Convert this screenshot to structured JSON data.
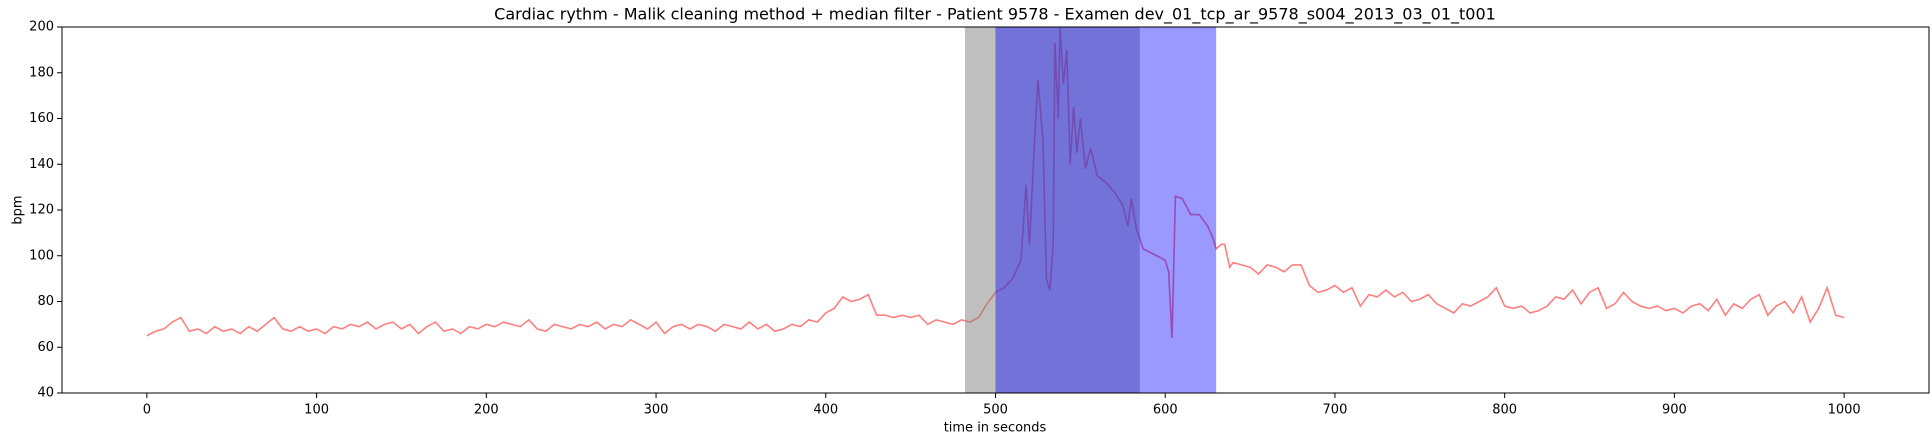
{
  "chart_data": {
    "type": "line",
    "title": "Cardiac rythm - Malik cleaning method + median filter - Patient 9578 - Examen dev_01_tcp_ar_9578_s004_2013_03_01_t001",
    "xlabel": "time in seconds",
    "ylabel": "bpm",
    "xlim": [
      -50,
      1050
    ],
    "ylim": [
      40,
      200
    ],
    "xticks": [
      0,
      100,
      200,
      300,
      400,
      500,
      600,
      700,
      800,
      900,
      1000
    ],
    "yticks": [
      40,
      60,
      80,
      100,
      120,
      140,
      160,
      180,
      200
    ],
    "spans": [
      {
        "start": 482,
        "end": 585,
        "color": "#808080",
        "alpha": 0.5
      },
      {
        "start": 500,
        "end": 630,
        "color": "#0000ff",
        "alpha": 0.4
      }
    ],
    "series": [
      {
        "color": "#ff0000",
        "alpha": 0.5,
        "x": [
          0,
          5,
          10,
          15,
          20,
          25,
          30,
          35,
          40,
          45,
          50,
          55,
          60,
          65,
          70,
          75,
          80,
          85,
          90,
          95,
          100,
          105,
          110,
          115,
          120,
          125,
          130,
          135,
          140,
          145,
          150,
          155,
          160,
          165,
          170,
          175,
          180,
          185,
          190,
          195,
          200,
          205,
          210,
          215,
          220,
          225,
          230,
          235,
          240,
          245,
          250,
          255,
          260,
          265,
          270,
          275,
          280,
          285,
          290,
          295,
          300,
          305,
          310,
          315,
          320,
          325,
          330,
          335,
          340,
          345,
          350,
          355,
          360,
          365,
          370,
          375,
          380,
          385,
          390,
          395,
          400,
          405,
          410,
          415,
          420,
          425,
          430,
          435,
          440,
          445,
          450,
          455,
          460,
          465,
          470,
          475,
          480,
          485,
          490,
          495,
          500,
          505,
          510,
          515,
          518,
          520,
          523,
          525,
          528,
          530,
          532,
          534,
          535,
          537,
          538,
          540,
          542,
          544,
          546,
          548,
          550,
          553,
          556,
          560,
          565,
          570,
          575,
          578,
          580,
          583,
          587,
          595,
          600,
          602,
          604,
          606,
          610,
          615,
          620,
          625,
          628,
          630,
          633,
          635,
          638,
          640,
          645,
          650,
          655,
          660,
          665,
          670,
          675,
          680,
          685,
          690,
          695,
          700,
          705,
          710,
          715,
          720,
          725,
          730,
          735,
          740,
          745,
          750,
          755,
          760,
          765,
          770,
          775,
          780,
          785,
          790,
          795,
          800,
          805,
          810,
          815,
          820,
          825,
          830,
          835,
          840,
          845,
          850,
          855,
          860,
          865,
          870,
          875,
          880,
          885,
          890,
          895,
          900,
          905,
          910,
          915,
          920,
          925,
          930,
          935,
          940,
          945,
          950,
          955,
          960,
          965,
          970,
          975,
          980,
          985,
          990,
          995,
          1000
        ],
        "values": [
          65,
          67,
          68,
          71,
          73,
          67,
          68,
          66,
          69,
          67,
          68,
          66,
          69,
          67,
          70,
          73,
          68,
          67,
          69,
          67,
          68,
          66,
          69,
          68,
          70,
          69,
          71,
          68,
          70,
          71,
          68,
          70,
          66,
          69,
          71,
          67,
          68,
          66,
          69,
          68,
          70,
          69,
          71,
          70,
          69,
          72,
          68,
          67,
          70,
          69,
          68,
          70,
          69,
          71,
          68,
          70,
          69,
          72,
          70,
          68,
          71,
          66,
          69,
          70,
          68,
          70,
          69,
          67,
          70,
          69,
          68,
          71,
          68,
          70,
          67,
          68,
          70,
          69,
          72,
          71,
          75,
          77,
          82,
          80,
          81,
          83,
          74,
          74,
          73,
          74,
          73,
          74,
          70,
          72,
          71,
          70,
          72,
          71,
          73,
          79,
          84,
          86,
          90,
          98,
          131,
          105,
          150,
          177,
          150,
          90,
          85,
          105,
          193,
          160,
          200,
          175,
          190,
          140,
          165,
          145,
          160,
          138,
          147,
          135,
          132,
          128,
          122,
          113,
          125,
          112,
          103,
          100,
          98,
          93,
          64,
          126,
          125,
          118,
          118,
          113,
          108,
          103,
          105,
          105,
          95,
          97,
          96,
          95,
          92,
          96,
          95,
          93,
          96,
          96,
          87,
          84,
          85,
          87,
          84,
          86,
          78,
          83,
          82,
          85,
          82,
          84,
          80,
          81,
          83,
          79,
          77,
          75,
          79,
          78,
          80,
          82,
          86,
          78,
          77,
          78,
          75,
          76,
          78,
          82,
          81,
          85,
          79,
          84,
          86,
          77,
          79,
          84,
          80,
          78,
          77,
          78,
          76,
          77,
          75,
          78,
          79,
          76,
          81,
          74,
          79,
          77,
          81,
          83,
          74,
          78,
          80,
          75,
          82,
          71,
          77,
          86,
          74,
          73
        ]
      }
    ]
  }
}
